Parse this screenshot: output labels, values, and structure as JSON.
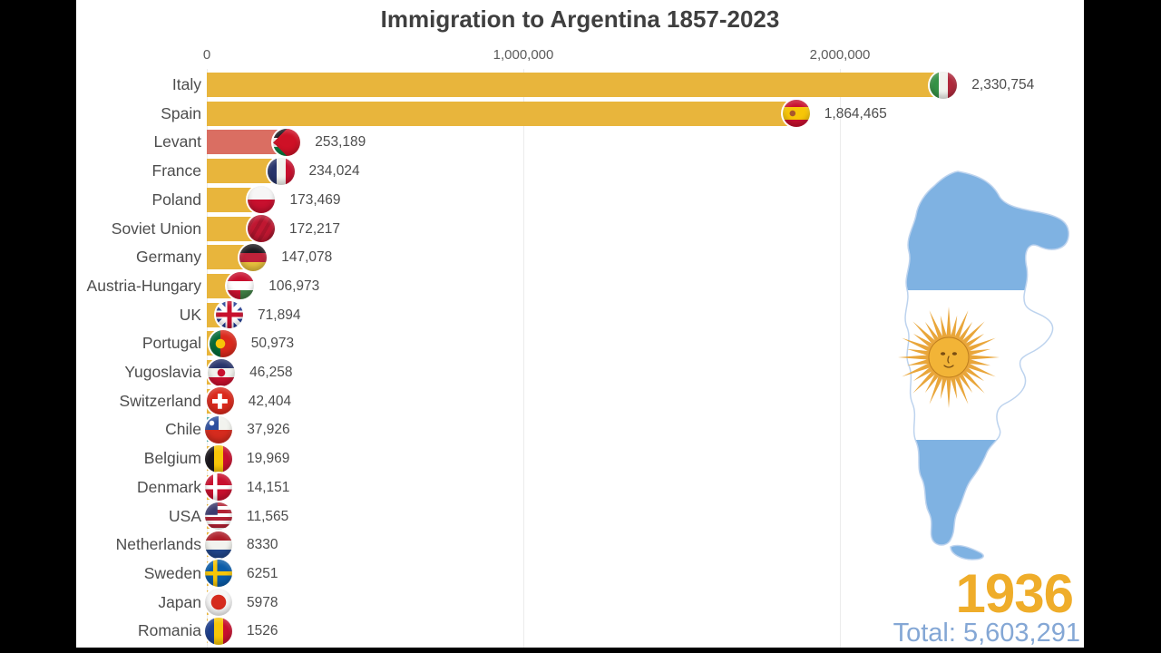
{
  "title": "Immigration to Argentina 1857-2023",
  "chart_data": {
    "type": "bar",
    "orientation": "horizontal",
    "title": "Immigration to Argentina 1857-2023",
    "categories": [
      "Italy",
      "Spain",
      "Levant",
      "France",
      "Poland",
      "Soviet Union",
      "Germany",
      "Austria-Hungary",
      "UK",
      "Portugal",
      "Yugoslavia",
      "Switzerland",
      "Chile",
      "Belgium",
      "Denmark",
      "USA",
      "Netherlands",
      "Sweden",
      "Japan",
      "Romania"
    ],
    "values": [
      2330754,
      1864465,
      253189,
      234024,
      173469,
      172217,
      147078,
      106973,
      71894,
      50973,
      46258,
      42404,
      37926,
      19969,
      14151,
      11565,
      8330,
      6251,
      5978,
      1526
    ],
    "value_labels": [
      "2,330,754",
      "1,864,465",
      "253,189",
      "234,024",
      "173,469",
      "172,217",
      "147,078",
      "106,973",
      "71,894",
      "50,973",
      "46,258",
      "42,404",
      "37,926",
      "19,969",
      "14,151",
      "11,565",
      "8330",
      "6251",
      "5978",
      "1526"
    ],
    "flag_icons": [
      "italy",
      "spain",
      "jordan",
      "france",
      "poland",
      "soviet-union",
      "germany",
      "austria-hungary",
      "uk",
      "portugal",
      "yugoslavia",
      "switzerland",
      "chile",
      "belgium",
      "denmark",
      "usa",
      "netherlands",
      "sweden",
      "japan",
      "romania"
    ],
    "bar_color_keys": [
      "gold",
      "gold",
      "salmon",
      "gold",
      "gold",
      "gold",
      "gold",
      "gold",
      "gold",
      "gold",
      "gold",
      "gold",
      "teal",
      "gold",
      "gold",
      "gold",
      "gold",
      "gold",
      "gold",
      "gold"
    ],
    "x_tick_labels": [
      "0",
      "1,000,000",
      "2,000,000"
    ],
    "x_tick_values": [
      0,
      1000000,
      2000000
    ],
    "xlim": [
      0,
      2775000
    ],
    "grid": "vertical-light",
    "legend": "none"
  },
  "overlay": {
    "year": "1936",
    "total": "Total: 5,603,291"
  },
  "colors": {
    "gold": "#E8B53C",
    "salmon": "#DA6E62",
    "teal": "#55B1AB",
    "year_text": "#EFAD2A",
    "total_text": "#84A7D5",
    "map_blue": "#7FB2E2",
    "map_outline": "#BDD3EE",
    "map_white": "#FFFFFF",
    "sun_gold": "#E9A63A",
    "sun_disc": "#F2B437",
    "sun_outline": "#C07F1F",
    "title_text": "#3F3F3F",
    "label_text": "#4D4D4D",
    "tick_text": "#5C5C5C",
    "grid_line": "#ECECEC",
    "background": "#FFFFFF",
    "pillarbox": "#000000"
  }
}
